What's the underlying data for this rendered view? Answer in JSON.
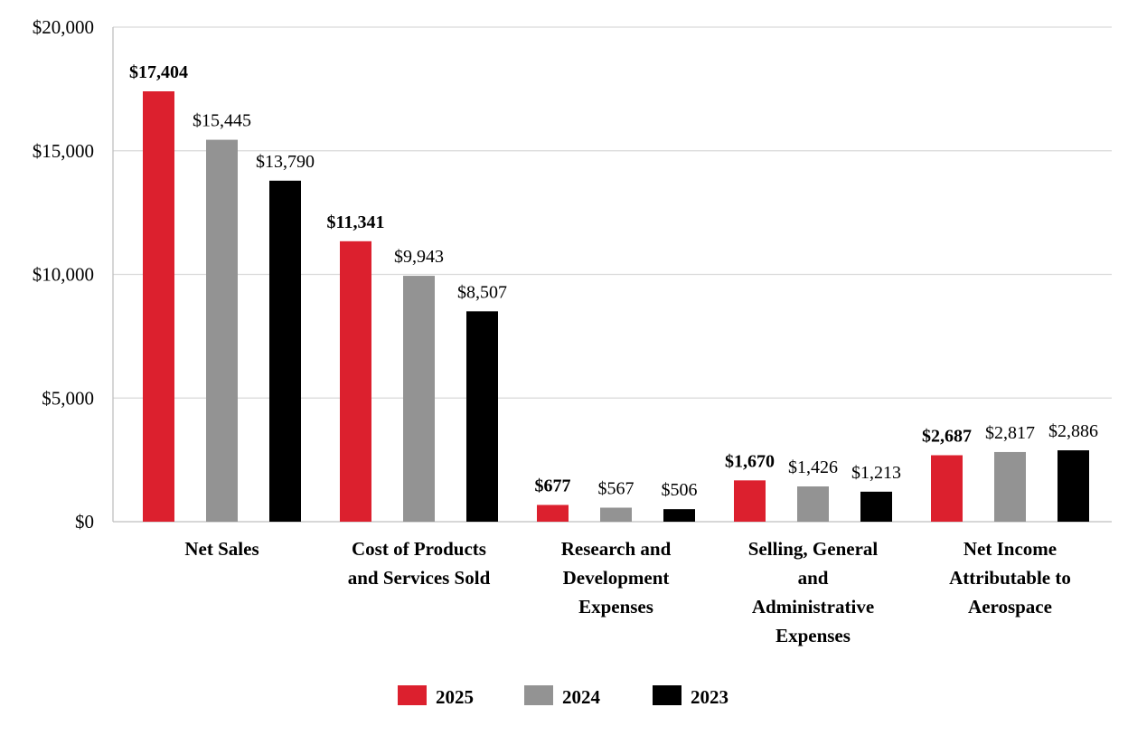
{
  "chart_data": {
    "type": "bar",
    "categories": [
      [
        "Net Sales"
      ],
      [
        "Cost of Products",
        "and Services Sold"
      ],
      [
        "Research and",
        "Development",
        "Expenses"
      ],
      [
        "Selling, General",
        "and",
        "Administrative",
        "Expenses"
      ],
      [
        "Net Income",
        "Attributable to",
        "Aerospace"
      ]
    ],
    "series": [
      {
        "name": "2025",
        "color": "#DC202E",
        "values": [
          17404,
          11341,
          677,
          1670,
          2687
        ],
        "labels": [
          "$17,404",
          "$11,341",
          "$677",
          "$1,670",
          "$2,687"
        ],
        "bold_labels": true
      },
      {
        "name": "2024",
        "color": "#939393",
        "values": [
          15445,
          9943,
          567,
          1426,
          2817
        ],
        "labels": [
          "$15,445",
          "$9,943",
          "$567",
          "$1,426",
          "$2,817"
        ],
        "bold_labels": false
      },
      {
        "name": "2023",
        "color": "#000000",
        "values": [
          13790,
          8507,
          506,
          1213,
          2886
        ],
        "labels": [
          "$13,790",
          "$8,507",
          "$506",
          "$1,213",
          "$2,886"
        ],
        "bold_labels": false
      }
    ],
    "ylim": [
      0,
      20000
    ],
    "yticks": [
      0,
      5000,
      10000,
      15000,
      20000
    ],
    "ytick_labels": [
      "$0",
      "$5,000",
      "$10,000",
      "$15,000",
      "$20,000"
    ],
    "grid": true,
    "legend_position": "bottom",
    "title": "",
    "xlabel": "",
    "ylabel": ""
  }
}
